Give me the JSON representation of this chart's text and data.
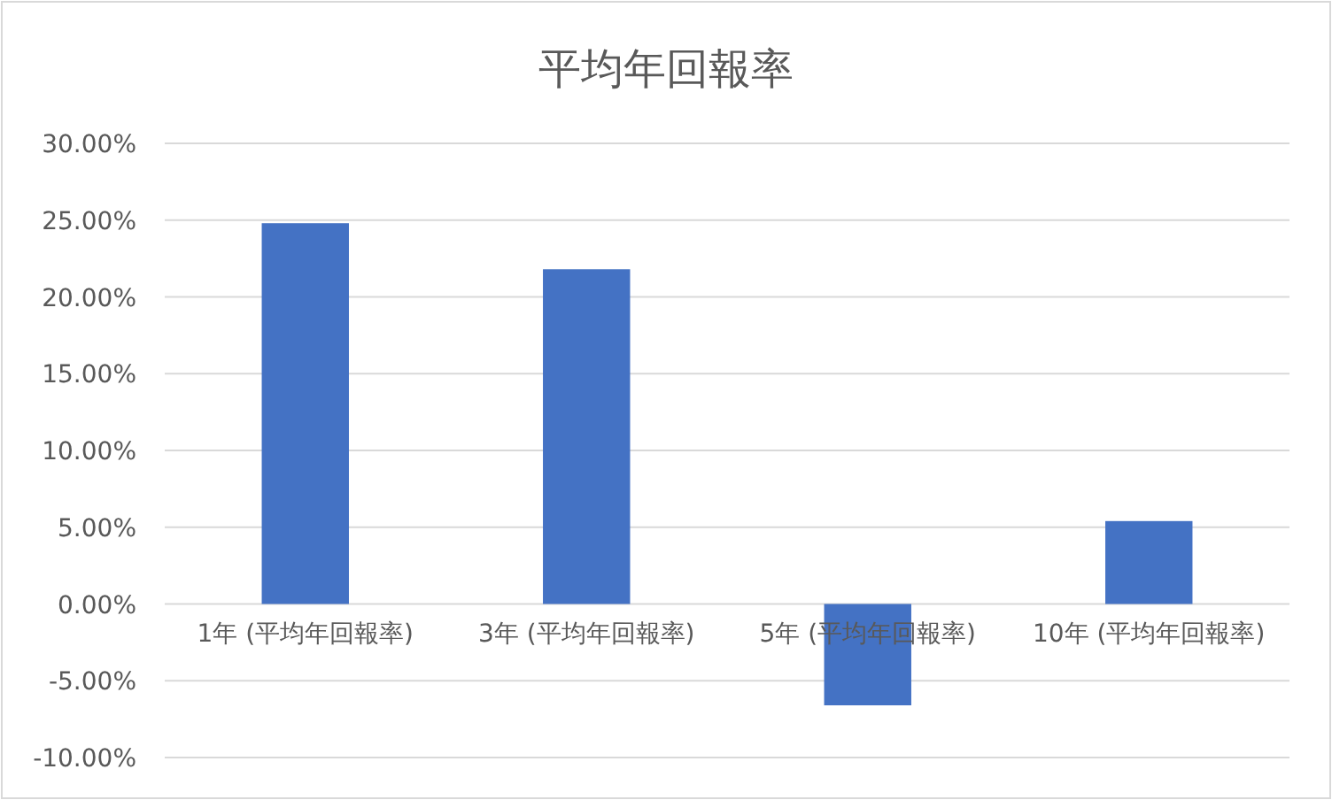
{
  "chart_data": {
    "type": "bar",
    "title": "平均年回報率",
    "categories": [
      "1年 (平均年回報率)",
      "3年 (平均年回報率)",
      "5年 (平均年回報率)",
      "10年 (平均年回報率)"
    ],
    "series": [
      {
        "color": "#4472c4",
        "values": [
          24.8,
          21.8,
          -6.6,
          5.4
        ]
      }
    ],
    "ylim": [
      -10,
      30
    ],
    "yticks": [
      {
        "value": -10,
        "label": "-10.00%"
      },
      {
        "value": -5,
        "label": "-5.00%"
      },
      {
        "value": 0,
        "label": "0.00%"
      },
      {
        "value": 5,
        "label": "5.00%"
      },
      {
        "value": 10,
        "label": "10.00%"
      },
      {
        "value": 15,
        "label": "15.00%"
      },
      {
        "value": 20,
        "label": "20.00%"
      },
      {
        "value": 25,
        "label": "25.00%"
      },
      {
        "value": 30,
        "label": "30.00%"
      }
    ],
    "grid": "y"
  }
}
